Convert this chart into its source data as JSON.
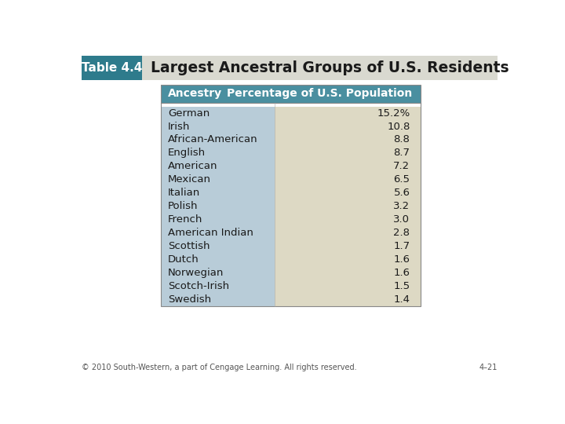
{
  "table_label": "Table 4.4",
  "title": "Largest Ancestral Groups of U.S. Residents",
  "col1_header": "Ancestry",
  "col2_header": "Percentage of U.S. Population",
  "rows": [
    [
      "German",
      "15.2%"
    ],
    [
      "Irish",
      "10.8"
    ],
    [
      "African-American",
      "8.8"
    ],
    [
      "English",
      "8.7"
    ],
    [
      "American",
      "7.2"
    ],
    [
      "Mexican",
      "6.5"
    ],
    [
      "Italian",
      "5.6"
    ],
    [
      "Polish",
      "3.2"
    ],
    [
      "French",
      "3.0"
    ],
    [
      "American Indian",
      "2.8"
    ],
    [
      "Scottish",
      "1.7"
    ],
    [
      "Dutch",
      "1.6"
    ],
    [
      "Norwegian",
      "1.6"
    ],
    [
      "Scotch-Irish",
      "1.5"
    ],
    [
      "Swedish",
      "1.4"
    ]
  ],
  "header_bg": "#4a8fa0",
  "header_text_color": "#ffffff",
  "col1_bg": "#b8ccd8",
  "col2_bg": "#ddd9c4",
  "title_bar_bg": "#d9d9d0",
  "table_label_bg": "#2e7b8c",
  "table_label_text": "#ffffff",
  "title_text_color": "#1a1a1a",
  "body_text_color": "#1a1a1a",
  "footer_text": "© 2010 South-Western, a part of Cengage Learning. All rights reserved.",
  "page_num": "4–21",
  "bg_color": "#ffffff"
}
